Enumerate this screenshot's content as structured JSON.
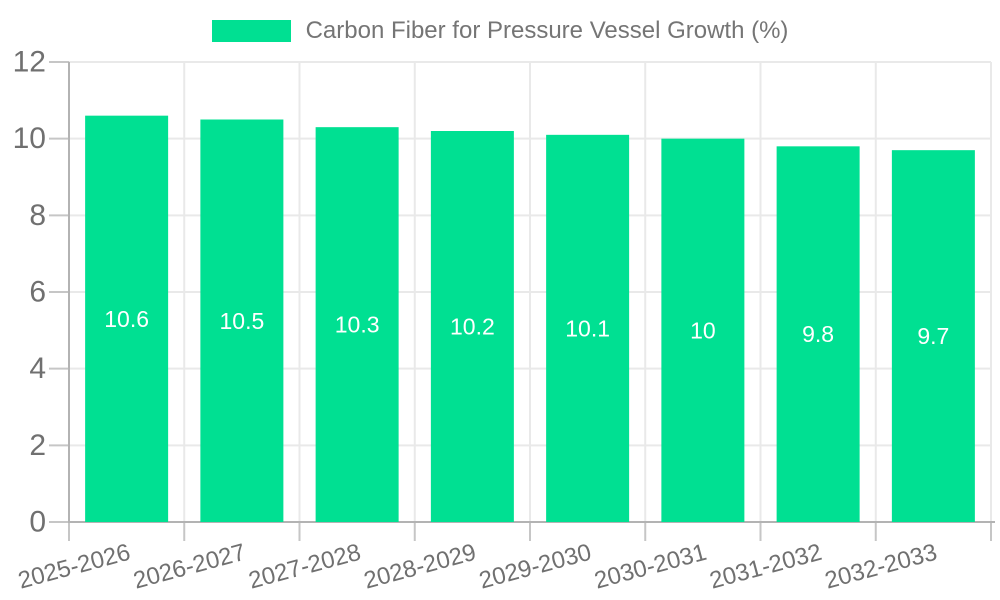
{
  "chart_data": {
    "type": "bar",
    "title": "Carbon Fiber for Pressure Vessel Growth (%)",
    "categories": [
      "2025-2026",
      "2026-2027",
      "2027-2028",
      "2028-2029",
      "2029-2030",
      "2030-2031",
      "2031-2032",
      "2032-2033"
    ],
    "values": [
      10.6,
      10.5,
      10.3,
      10.2,
      10.1,
      10,
      9.8,
      9.7
    ],
    "value_labels": [
      "10.6",
      "10.5",
      "10.3",
      "10.2",
      "10.1",
      "10",
      "9.8",
      "9.7"
    ],
    "xlabel": "",
    "ylabel": "",
    "ylim": [
      0,
      12
    ],
    "yticks": [
      0,
      2,
      4,
      6,
      8,
      10,
      12
    ],
    "grid": true,
    "legend_position": "top-center",
    "x_label_rotation_deg": -15,
    "colors": {
      "bar": "#00E092",
      "grid": "#E9E9E9",
      "axis": "#B3B3B3",
      "tick": "#C6C6C6",
      "tick_label": "#707070",
      "legend_text": "#757575",
      "value_label": "#FFFFFF",
      "background": "#FFFFFF"
    }
  }
}
